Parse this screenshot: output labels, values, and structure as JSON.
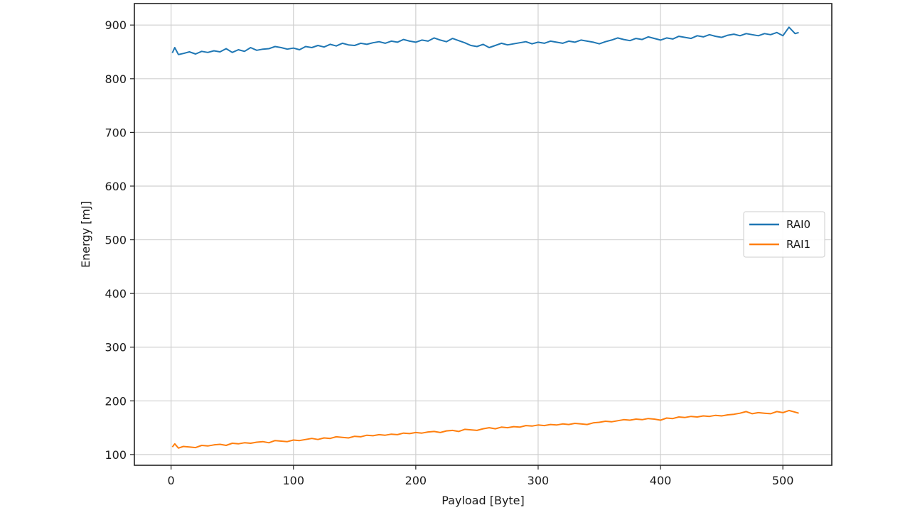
{
  "chart_data": {
    "type": "line",
    "title": "",
    "xlabel": "Payload [Byte]",
    "ylabel": "Energy [mJ]",
    "xlim": [
      -30,
      540
    ],
    "ylim": [
      80,
      940
    ],
    "xticks": [
      0,
      100,
      200,
      300,
      400,
      500
    ],
    "yticks": [
      100,
      200,
      300,
      400,
      500,
      600,
      700,
      800,
      900
    ],
    "grid": true,
    "legend": "center-right",
    "series": [
      {
        "name": "RAI0",
        "color": "#1f77b4",
        "x": [
          1,
          3,
          6,
          10,
          15,
          20,
          25,
          30,
          35,
          40,
          45,
          50,
          55,
          60,
          65,
          70,
          75,
          80,
          85,
          90,
          95,
          100,
          105,
          110,
          115,
          120,
          125,
          130,
          135,
          140,
          145,
          150,
          155,
          160,
          165,
          170,
          175,
          180,
          185,
          190,
          195,
          200,
          205,
          210,
          215,
          220,
          225,
          230,
          235,
          240,
          245,
          250,
          255,
          260,
          265,
          270,
          275,
          280,
          285,
          290,
          295,
          300,
          305,
          310,
          315,
          320,
          325,
          330,
          335,
          340,
          345,
          350,
          355,
          360,
          365,
          370,
          375,
          380,
          385,
          390,
          395,
          400,
          405,
          410,
          415,
          420,
          425,
          430,
          435,
          440,
          445,
          450,
          455,
          460,
          465,
          470,
          475,
          480,
          485,
          490,
          495,
          500,
          505,
          510,
          513
        ],
        "y": [
          848,
          858,
          845,
          847,
          850,
          846,
          851,
          849,
          852,
          850,
          856,
          849,
          854,
          851,
          858,
          853,
          855,
          856,
          860,
          858,
          855,
          857,
          854,
          860,
          858,
          862,
          859,
          864,
          861,
          866,
          863,
          862,
          866,
          864,
          867,
          869,
          866,
          870,
          868,
          873,
          870,
          868,
          872,
          870,
          876,
          872,
          869,
          875,
          871,
          867,
          862,
          860,
          864,
          858,
          862,
          866,
          863,
          865,
          867,
          869,
          865,
          868,
          866,
          870,
          868,
          866,
          870,
          868,
          872,
          870,
          868,
          865,
          869,
          872,
          876,
          873,
          871,
          875,
          873,
          878,
          875,
          872,
          876,
          874,
          879,
          877,
          875,
          880,
          878,
          882,
          879,
          877,
          881,
          883,
          880,
          884,
          882,
          880,
          884,
          882,
          886,
          880,
          896,
          884,
          886
        ]
      },
      {
        "name": "RAI1",
        "color": "#ff7f0e",
        "x": [
          1,
          3,
          6,
          10,
          15,
          20,
          25,
          30,
          35,
          40,
          45,
          50,
          55,
          60,
          65,
          70,
          75,
          80,
          85,
          90,
          95,
          100,
          105,
          110,
          115,
          120,
          125,
          130,
          135,
          140,
          145,
          150,
          155,
          160,
          165,
          170,
          175,
          180,
          185,
          190,
          195,
          200,
          205,
          210,
          215,
          220,
          225,
          230,
          235,
          240,
          245,
          250,
          255,
          260,
          265,
          270,
          275,
          280,
          285,
          290,
          295,
          300,
          305,
          310,
          315,
          320,
          325,
          330,
          335,
          340,
          345,
          350,
          355,
          360,
          365,
          370,
          375,
          380,
          385,
          390,
          395,
          400,
          405,
          410,
          415,
          420,
          425,
          430,
          435,
          440,
          445,
          450,
          455,
          460,
          465,
          470,
          475,
          480,
          485,
          490,
          495,
          500,
          505,
          510,
          513
        ],
        "y": [
          114,
          120,
          112,
          115,
          114,
          113,
          117,
          116,
          118,
          119,
          117,
          121,
          120,
          122,
          121,
          123,
          124,
          122,
          126,
          125,
          124,
          127,
          126,
          128,
          130,
          128,
          131,
          130,
          133,
          132,
          131,
          134,
          133,
          136,
          135,
          137,
          136,
          138,
          137,
          140,
          139,
          141,
          140,
          142,
          143,
          141,
          144,
          145,
          143,
          147,
          146,
          145,
          148,
          150,
          148,
          151,
          150,
          152,
          151,
          154,
          153,
          155,
          154,
          156,
          155,
          157,
          156,
          158,
          157,
          156,
          159,
          160,
          162,
          161,
          163,
          165,
          164,
          166,
          165,
          167,
          166,
          164,
          168,
          167,
          170,
          169,
          171,
          170,
          172,
          171,
          173,
          172,
          174,
          175,
          177,
          180,
          176,
          178,
          177,
          176,
          180,
          178,
          182,
          179,
          177
        ]
      }
    ]
  }
}
